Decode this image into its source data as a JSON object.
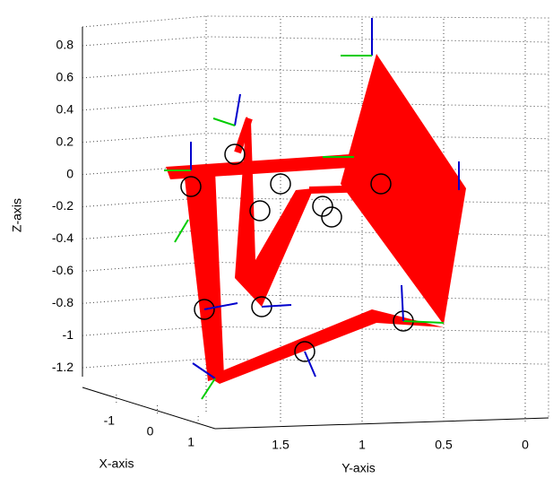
{
  "chart_data": {
    "type": "3d-line",
    "xlabel": "X-axis",
    "ylabel": "Y-axis",
    "zlabel": "Z-axis",
    "zlim": [
      -1.4,
      0.9
    ],
    "zticks": [
      0.8,
      0.6,
      0.4,
      0.2,
      0,
      -0.2,
      -0.4,
      -0.6,
      -0.8,
      -1,
      -1.2
    ],
    "xlim": [
      -1.5,
      1.5
    ],
    "xticks": [
      -1,
      0,
      1
    ],
    "ylim": [
      0,
      2
    ],
    "yticks": [
      1.5,
      1,
      0.5,
      0
    ],
    "grid": true,
    "color": "#ff0000"
  }
}
